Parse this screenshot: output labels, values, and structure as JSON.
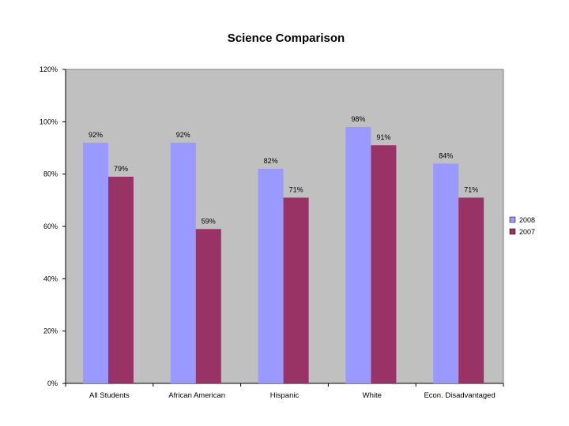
{
  "chart_data": {
    "type": "bar",
    "title": "Science Comparison",
    "xlabel": "",
    "ylabel": "",
    "categories": [
      "All Students",
      "African American",
      "Hispanic",
      "White",
      "Econ. Disadvantaged"
    ],
    "series": [
      {
        "name": "2008",
        "values": [
          92,
          92,
          82,
          98,
          84
        ],
        "color": "#9999ff"
      },
      {
        "name": "2007",
        "values": [
          79,
          59,
          71,
          91,
          71
        ],
        "color": "#993366"
      }
    ],
    "data_labels": [
      [
        "92%",
        "92%",
        "82%",
        "98%",
        "84%"
      ],
      [
        "79%",
        "59%",
        "71%",
        "91%",
        "71%"
      ]
    ],
    "ylim": [
      0,
      120
    ],
    "y_ticks": [
      0,
      20,
      40,
      60,
      80,
      100,
      120
    ],
    "y_tick_labels": [
      "0%",
      "20%",
      "40%",
      "60%",
      "80%",
      "100%",
      "120%"
    ],
    "grid": false,
    "legend_position": "right",
    "plot_background": "#c0c0c0"
  }
}
